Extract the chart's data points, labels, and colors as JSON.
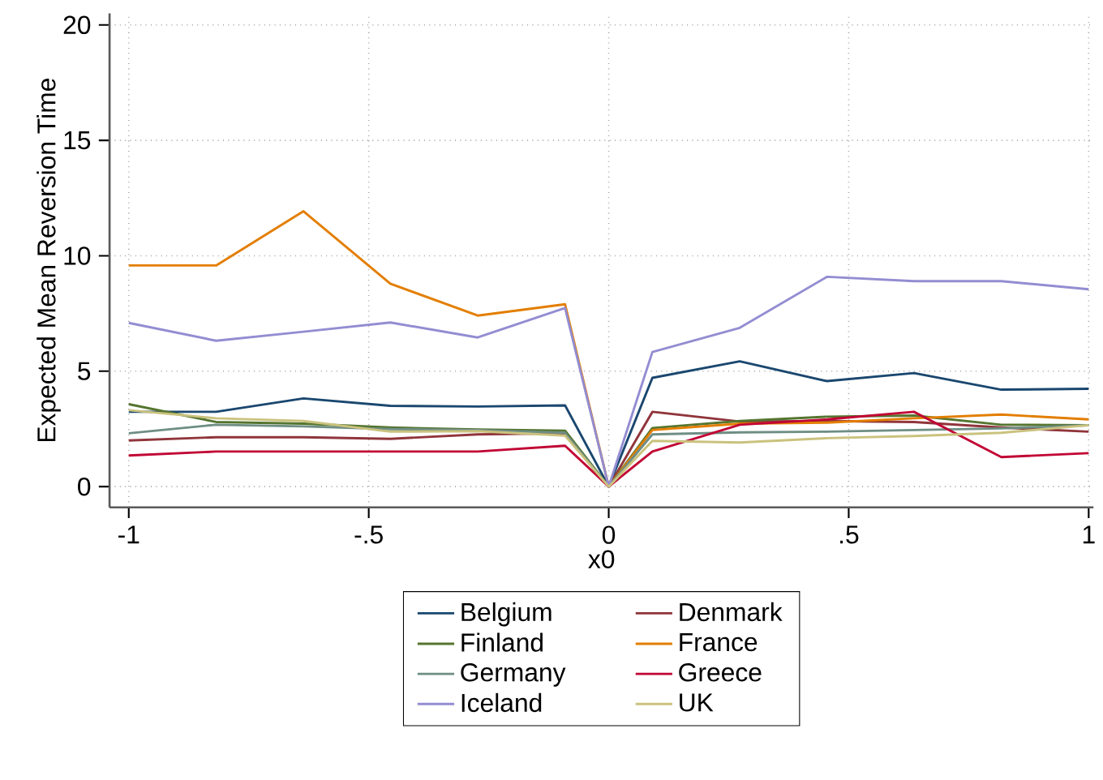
{
  "chart_data": {
    "type": "line",
    "xlabel": "x0",
    "ylabel": "Expected Mean Reversion Time",
    "x": [
      -1,
      -0.818,
      -0.636,
      -0.455,
      -0.273,
      -0.091,
      0,
      0.091,
      0.273,
      0.455,
      0.636,
      0.818,
      1
    ],
    "series": [
      {
        "name": "Belgium",
        "color": "#1a476f",
        "values": [
          3.24,
          3.24,
          3.82,
          3.5,
          3.47,
          3.52,
          0,
          4.71,
          5.43,
          4.57,
          4.92,
          4.2,
          4.24
        ]
      },
      {
        "name": "Denmark",
        "color": "#90353b",
        "values": [
          2.0,
          2.14,
          2.14,
          2.07,
          2.26,
          2.31,
          0,
          3.24,
          2.82,
          2.84,
          2.8,
          2.56,
          2.38
        ]
      },
      {
        "name": "Finland",
        "color": "#55752f",
        "values": [
          3.57,
          2.8,
          2.73,
          2.56,
          2.47,
          2.42,
          0,
          2.54,
          2.84,
          3.03,
          3.08,
          2.68,
          2.66
        ]
      },
      {
        "name": "France",
        "color": "#e37e00",
        "values": [
          9.58,
          9.58,
          11.93,
          8.79,
          7.41,
          7.9,
          0,
          2.45,
          2.73,
          2.77,
          2.96,
          3.12,
          2.91
        ]
      },
      {
        "name": "Germany",
        "color": "#6e8e84",
        "values": [
          2.31,
          2.68,
          2.61,
          2.49,
          2.45,
          2.33,
          0,
          2.26,
          2.35,
          2.38,
          2.45,
          2.52,
          2.66
        ]
      },
      {
        "name": "Greece",
        "color": "#c10534",
        "values": [
          1.35,
          1.52,
          1.52,
          1.52,
          1.52,
          1.77,
          0,
          1.52,
          2.68,
          2.91,
          3.24,
          1.28,
          1.45
        ]
      },
      {
        "name": "Iceland",
        "color": "#938dd2",
        "values": [
          7.09,
          6.32,
          6.71,
          7.11,
          6.46,
          7.74,
          0,
          5.83,
          6.88,
          9.09,
          8.9,
          8.9,
          8.55
        ]
      },
      {
        "name": "UK",
        "color": "#cac27e",
        "values": [
          3.31,
          2.96,
          2.84,
          2.38,
          2.4,
          2.21,
          0,
          1.98,
          1.91,
          2.1,
          2.19,
          2.33,
          2.66
        ]
      }
    ],
    "xlim": [
      -1.04,
      1.01
    ],
    "ylim": [
      -0.9,
      20.5
    ],
    "xticks": [
      {
        "value": -1,
        "label": "-1"
      },
      {
        "value": -0.5,
        "label": "-.5"
      },
      0,
      {
        "value": 0.5,
        "label": ".5"
      },
      1
    ],
    "yticks": [
      0,
      5,
      10,
      15,
      20
    ],
    "grid": true,
    "legend": "bottom",
    "line_style": "solid"
  }
}
